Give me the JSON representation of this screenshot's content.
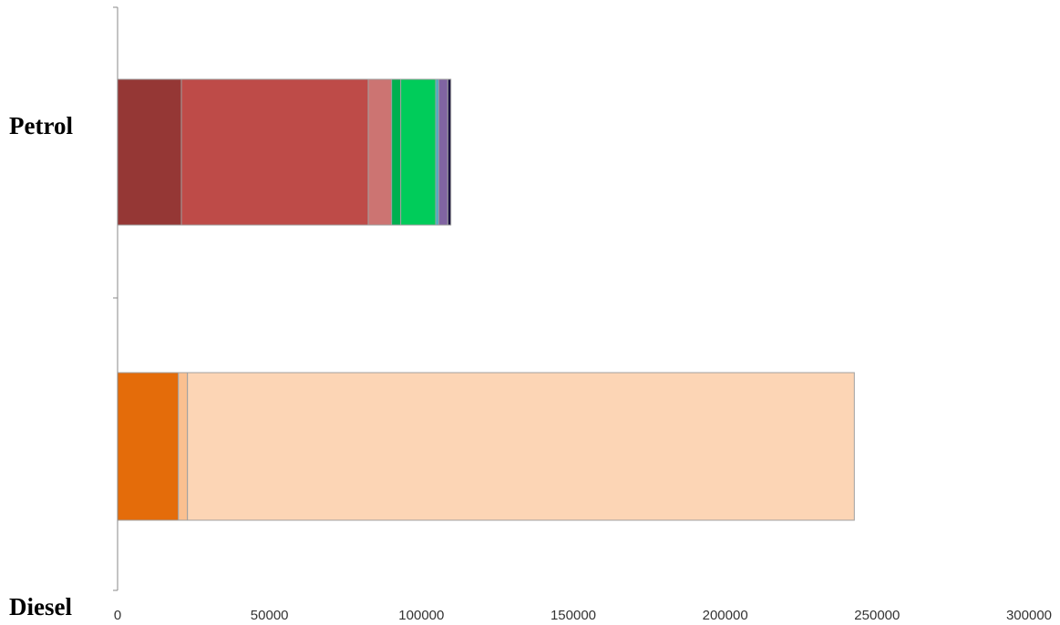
{
  "chart_data": {
    "type": "bar",
    "orientation": "horizontal",
    "stacked": true,
    "categories": [
      "Petrol",
      "Diesel"
    ],
    "xlim": [
      0,
      300000
    ],
    "x_ticks": [
      "0",
      "50000",
      "100000",
      "150000",
      "200000",
      "250000",
      "300000"
    ],
    "grid": false,
    "bars": [
      {
        "category": "Petrol",
        "segments": [
          {
            "value": 21000,
            "color": "#953735"
          },
          {
            "value": 61500,
            "color": "#BE4B48"
          },
          {
            "value": 7700,
            "color": "#CC7472"
          },
          {
            "value": 3000,
            "color": "#00B050"
          },
          {
            "value": 11500,
            "color": "#00CC5A"
          },
          {
            "value": 1000,
            "color": "#4BACC6"
          },
          {
            "value": 3000,
            "color": "#8064A2"
          },
          {
            "value": 1000,
            "color": "#1A1040"
          }
        ]
      },
      {
        "category": "Diesel",
        "segments": [
          {
            "value": 20000,
            "color": "#E46C0A"
          },
          {
            "value": 3000,
            "color": "#FAC090"
          },
          {
            "value": 219500,
            "color": "#FCD5B5"
          }
        ]
      }
    ]
  }
}
